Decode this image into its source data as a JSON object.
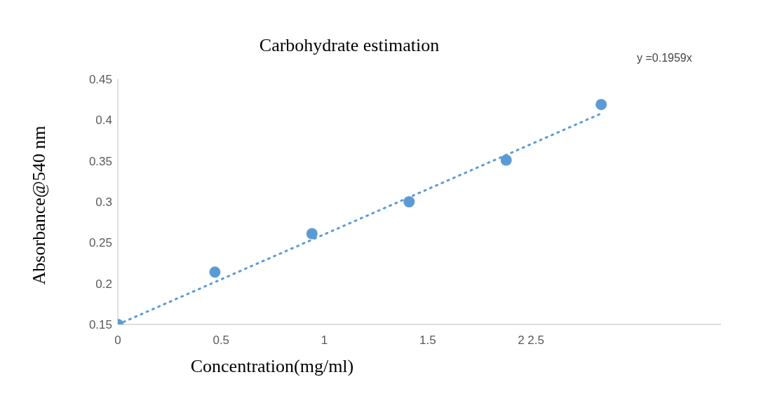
{
  "chart_data": {
    "type": "scatter",
    "title": "Carbohydrate estimation",
    "xlabel": "Concentration(mg/ml)",
    "ylabel": "Absorbance@540 nm",
    "x": [
      0,
      0.47,
      0.94,
      1.41,
      1.88,
      2.34
    ],
    "series": [
      {
        "color": "#5b9bd5",
        "marker": "circle",
        "values": [
          0.15,
          0.214,
          0.261,
          0.3,
          0.351,
          0.419
        ]
      },
      {
        "type": "line",
        "color": "#5b9bd5",
        "line_style": "dotted",
        "marker": "none",
        "x": [
          0,
          2.34
        ],
        "values": [
          0.15,
          0.408
        ]
      }
    ],
    "xlim": [
      0,
      2.92
    ],
    "xticks": [
      0,
      0.5,
      1,
      1.5,
      {
        "value": 2,
        "label": "2 2.5"
      }
    ],
    "ylim": [
      0.15,
      0.45
    ],
    "yticks": [
      0.15,
      0.2,
      0.25,
      0.3,
      0.35,
      0.4,
      0.45
    ],
    "grid": false,
    "legend": false,
    "annotations": [
      "y =0.1959x"
    ]
  }
}
